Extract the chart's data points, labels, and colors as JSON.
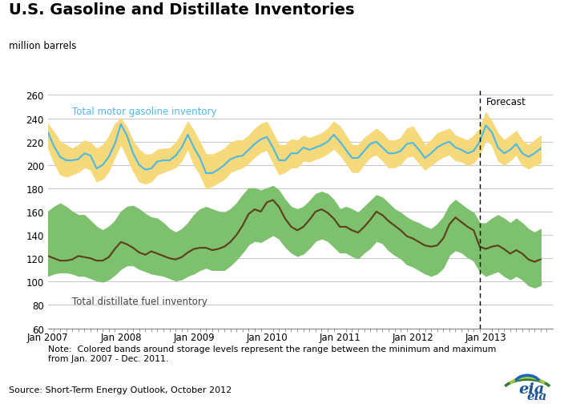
{
  "title": "U.S. Gasoline and Distillate Inventories",
  "ylabel": "million barrels",
  "ylim": [
    60,
    265
  ],
  "yticks": [
    60,
    80,
    100,
    120,
    140,
    160,
    180,
    200,
    220,
    240,
    260
  ],
  "forecast_label": "Forecast",
  "gasoline_label": "Total motor gasoline inventory",
  "distillate_label": "Total distillate fuel inventory",
  "note_text": "Note:  Colored bands around storage levels represent the range between the minimum and maximum\nfrom Jan. 2007 - Dec. 2011.",
  "source_text": "Source: Short-Term Energy Outlook, October 2012",
  "gasoline_color": "#4db8e8",
  "gasoline_band_color": "#f5d97a",
  "distillate_color": "#5a3e1b",
  "distillate_band_color": "#7dc06e",
  "forecast_line_x": 71,
  "background_color": "#ffffff",
  "grid_color": "#c8c8c8",
  "gasoline_line": [
    228,
    216,
    207,
    204,
    204,
    205,
    210,
    208,
    197,
    200,
    207,
    218,
    235,
    225,
    210,
    200,
    196,
    197,
    203,
    204,
    204,
    208,
    215,
    226,
    215,
    206,
    193,
    193,
    196,
    200,
    205,
    207,
    208,
    213,
    218,
    222,
    224,
    215,
    204,
    204,
    210,
    210,
    215,
    213,
    215,
    217,
    220,
    226,
    220,
    213,
    206,
    206,
    212,
    218,
    220,
    215,
    210,
    210,
    212,
    218,
    219,
    213,
    206,
    210,
    215,
    218,
    220,
    215,
    213,
    210,
    212,
    220,
    234,
    228,
    215,
    210,
    213,
    218,
    210,
    207,
    210,
    214
  ],
  "gasoline_band_upper": [
    235,
    228,
    220,
    217,
    214,
    217,
    221,
    219,
    214,
    217,
    224,
    235,
    240,
    232,
    220,
    213,
    209,
    209,
    213,
    214,
    214,
    219,
    227,
    237,
    229,
    219,
    209,
    209,
    211,
    214,
    219,
    221,
    221,
    225,
    231,
    235,
    237,
    227,
    217,
    217,
    222,
    221,
    225,
    223,
    225,
    227,
    231,
    237,
    233,
    225,
    217,
    217,
    223,
    227,
    231,
    227,
    221,
    221,
    223,
    231,
    233,
    225,
    217,
    221,
    227,
    229,
    231,
    225,
    223,
    221,
    225,
    231,
    245,
    237,
    227,
    221,
    225,
    229,
    221,
    217,
    221,
    225
  ],
  "gasoline_band_lower": [
    215,
    202,
    192,
    190,
    192,
    194,
    198,
    196,
    186,
    188,
    195,
    207,
    218,
    207,
    195,
    186,
    184,
    186,
    192,
    194,
    196,
    198,
    204,
    214,
    200,
    192,
    180,
    182,
    185,
    188,
    194,
    196,
    198,
    202,
    207,
    211,
    213,
    202,
    192,
    194,
    198,
    198,
    204,
    203,
    205,
    207,
    210,
    214,
    209,
    202,
    194,
    194,
    201,
    207,
    209,
    204,
    198,
    198,
    201,
    207,
    208,
    202,
    196,
    200,
    204,
    207,
    209,
    204,
    203,
    200,
    202,
    209,
    222,
    217,
    204,
    200,
    204,
    209,
    200,
    197,
    200,
    202
  ],
  "distillate_line": [
    122,
    120,
    118,
    118,
    119,
    122,
    121,
    120,
    118,
    118,
    121,
    128,
    134,
    132,
    129,
    125,
    123,
    126,
    124,
    122,
    120,
    119,
    121,
    125,
    128,
    129,
    129,
    127,
    128,
    130,
    134,
    140,
    148,
    158,
    162,
    160,
    168,
    170,
    164,
    154,
    147,
    144,
    147,
    153,
    160,
    162,
    159,
    154,
    147,
    147,
    144,
    142,
    147,
    153,
    160,
    157,
    152,
    148,
    144,
    139,
    137,
    134,
    131,
    130,
    131,
    137,
    149,
    155,
    151,
    147,
    144,
    130,
    128,
    130,
    131,
    128,
    124,
    127,
    124,
    119,
    117,
    119
  ],
  "distillate_band_upper": [
    160,
    164,
    167,
    164,
    160,
    157,
    157,
    152,
    147,
    144,
    147,
    152,
    160,
    164,
    165,
    162,
    158,
    155,
    154,
    150,
    145,
    142,
    145,
    150,
    157,
    162,
    164,
    162,
    160,
    159,
    162,
    167,
    174,
    180,
    180,
    178,
    180,
    182,
    178,
    170,
    164,
    162,
    164,
    169,
    175,
    177,
    175,
    170,
    162,
    164,
    162,
    159,
    164,
    169,
    174,
    172,
    167,
    162,
    159,
    155,
    152,
    150,
    147,
    145,
    149,
    155,
    165,
    170,
    166,
    162,
    159,
    150,
    150,
    154,
    157,
    154,
    150,
    154,
    150,
    145,
    142,
    145
  ],
  "distillate_band_lower": [
    105,
    107,
    108,
    108,
    107,
    105,
    105,
    103,
    101,
    100,
    102,
    106,
    111,
    114,
    114,
    111,
    109,
    107,
    106,
    105,
    103,
    101,
    102,
    105,
    107,
    110,
    112,
    110,
    110,
    110,
    114,
    119,
    125,
    132,
    135,
    134,
    137,
    140,
    137,
    130,
    125,
    122,
    124,
    129,
    135,
    137,
    135,
    130,
    125,
    125,
    122,
    120,
    125,
    129,
    135,
    133,
    127,
    123,
    120,
    115,
    113,
    110,
    107,
    105,
    107,
    112,
    123,
    127,
    125,
    121,
    118,
    109,
    105,
    107,
    109,
    105,
    102,
    105,
    102,
    97,
    95,
    97
  ],
  "xtick_positions": [
    0,
    12,
    24,
    36,
    48,
    60,
    72,
    83
  ],
  "xtick_labels": [
    "Jan 2007",
    "Jan 2008",
    "Jan 2009",
    "Jan 2010",
    "Jan 2011",
    "Jan 2012",
    "Jan 2013",
    ""
  ]
}
